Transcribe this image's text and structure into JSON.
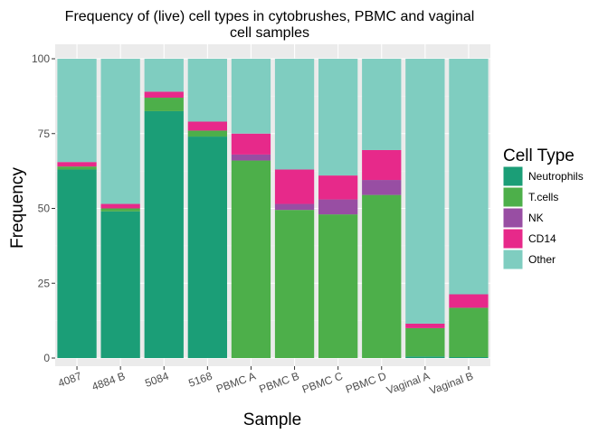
{
  "chart_data": {
    "type": "bar",
    "stacked": true,
    "title_lines": [
      "Frequency of (live) cell types in cytobrushes, PBMC and vaginal",
      "cell samples"
    ],
    "xlabel": "Sample",
    "ylabel": "Frequency",
    "ylim": [
      0,
      100
    ],
    "yticks": [
      0,
      25,
      50,
      75,
      100
    ],
    "grid": true,
    "legend_position": "right",
    "legend_title": "Cell Type",
    "categories": [
      "4087",
      "4884 B",
      "5084",
      "5168",
      "PBMC A",
      "PBMC B",
      "PBMC C",
      "PBMC D",
      "Vaginal A",
      "Vaginal B"
    ],
    "series": [
      {
        "name": "Neutrophils",
        "color": "#1b9e77",
        "values": [
          63,
          49,
          82.5,
          74,
          0,
          0,
          0,
          0,
          0.5,
          0.3
        ]
      },
      {
        "name": "T.cells",
        "color": "#4daf4a",
        "values": [
          1,
          1,
          4.5,
          2,
          66,
          49.5,
          48,
          54.5,
          9.5,
          16.5
        ]
      },
      {
        "name": "NK",
        "color": "#984ea3",
        "values": [
          0,
          0,
          0,
          0,
          2,
          2,
          5,
          5,
          0,
          0
        ]
      },
      {
        "name": "CD14",
        "color": "#e7298a",
        "values": [
          1.5,
          1.5,
          2,
          3,
          7,
          11.5,
          8,
          10,
          1.5,
          4.5
        ]
      },
      {
        "name": "Other",
        "color": "#7fcdc0",
        "values": [
          34.5,
          48.5,
          11,
          21,
          25,
          37,
          39,
          30.5,
          88.5,
          78.7
        ]
      }
    ]
  },
  "colors": {
    "panel_background": "#ebebeb",
    "grid_major": "#ffffff",
    "grid_minor": "#f5f5f5",
    "tick_text": "#4d4d4d"
  }
}
